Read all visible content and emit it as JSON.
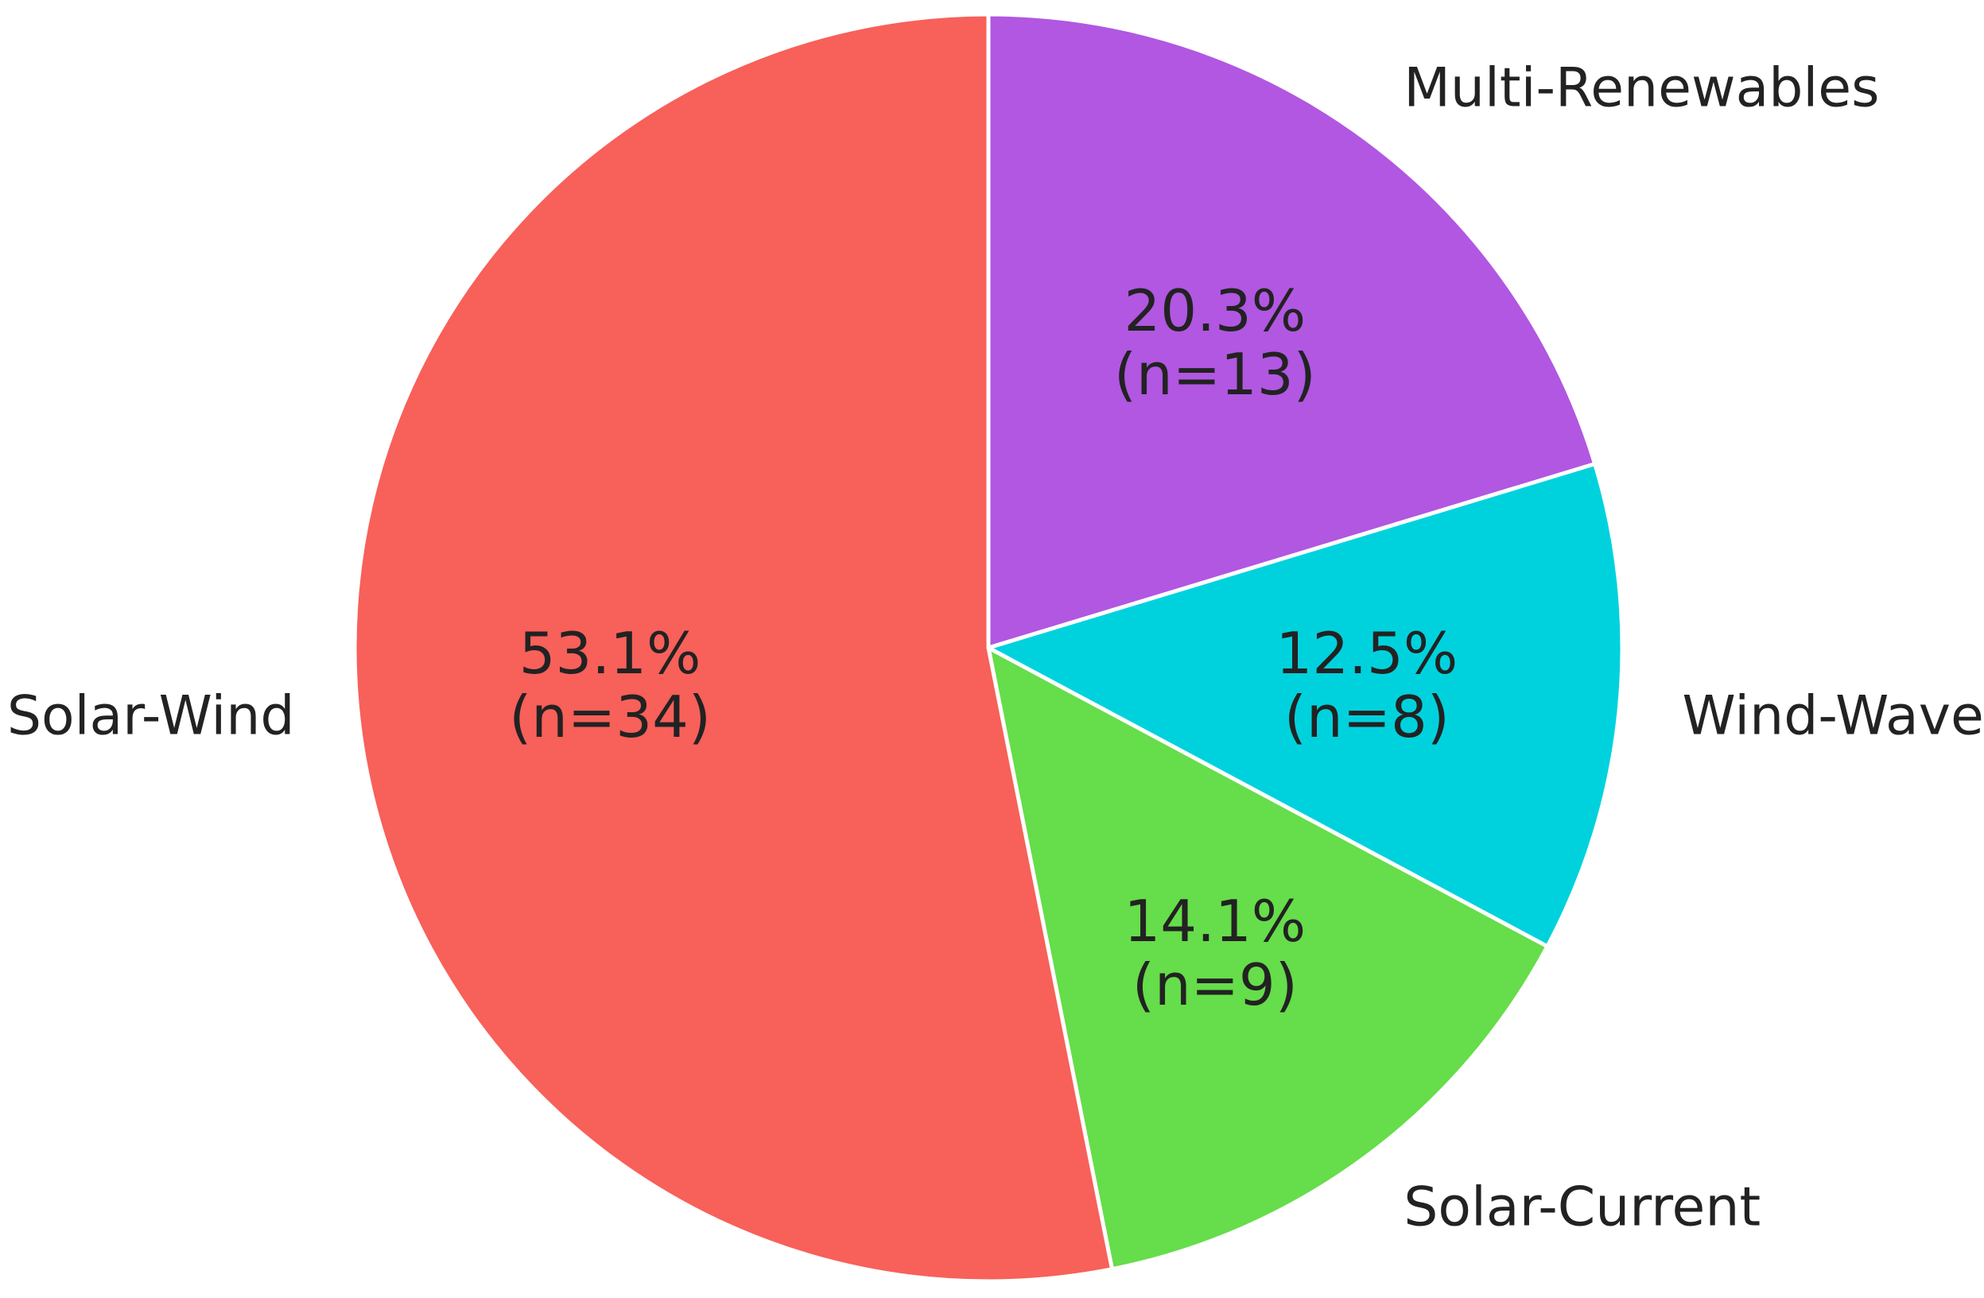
{
  "chart_data": {
    "type": "pie",
    "categories": [
      "Multi-Renewables",
      "Wind-Wave",
      "Solar-Current",
      "Solar-Wind"
    ],
    "values": [
      13,
      8,
      9,
      34
    ],
    "percent_labels": [
      "20.3%",
      "12.5%",
      "14.1%",
      "53.1%"
    ],
    "count_labels": [
      "(n=13)",
      "(n=8)",
      "(n=9)",
      "(n=34)"
    ],
    "colors": [
      "#b157e1",
      "#00d2dd",
      "#66dd4a",
      "#f8605a"
    ],
    "start_angle_deg": 90,
    "direction": "clockwise",
    "title": ""
  }
}
